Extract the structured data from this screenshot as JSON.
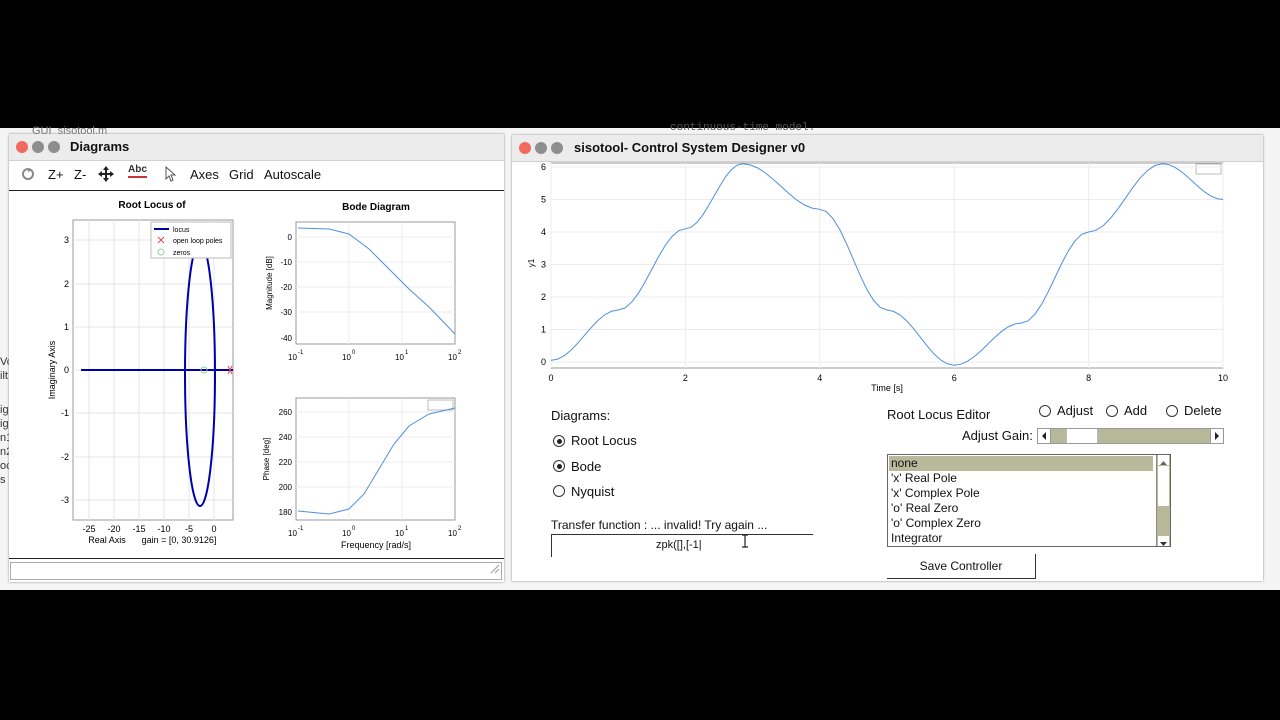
{
  "background_editor": {
    "tab_text": "GUI_sisotool.m",
    "model_text": "continuous-time model.",
    "side_lines": [
      "Vo",
      "ilt",
      "ig",
      "ig",
      "n1",
      "n2",
      "oc",
      "s"
    ]
  },
  "diagrams_window": {
    "title": "Diagrams",
    "toolbar": {
      "zoom_in": "Z+",
      "zoom_out": "Z-",
      "text_tool": "Abc",
      "axes": "Axes",
      "grid": "Grid",
      "autoscale": "Autoscale"
    },
    "root_locus": {
      "title": "Root Locus of",
      "xlabel": "Real Axis",
      "gain_text": "gain = [0, 30.9126]",
      "ylabel": "Imaginary Axis",
      "xticks": [
        "-25",
        "-20",
        "-15",
        "-10",
        "-5",
        "0"
      ],
      "yticks": [
        "3",
        "2",
        "1",
        "0",
        "-1",
        "-2",
        "-3"
      ],
      "legend": [
        "locus",
        "open loop poles",
        "zeros"
      ]
    },
    "bode": {
      "title": "Bode Diagram",
      "mag_ylabel": "Magnitude [dB]",
      "mag_yticks": [
        "0",
        "-10",
        "-20",
        "-30",
        "-40"
      ],
      "phase_ylabel": "Phase [deg]",
      "phase_yticks": [
        "260",
        "240",
        "220",
        "200",
        "180"
      ],
      "xticks": [
        "10",
        "10",
        "10",
        "10"
      ],
      "xtick_exp": [
        "-1",
        "0",
        "1",
        "2"
      ],
      "xlabel": "Frequency [rad/s]"
    }
  },
  "designer_window": {
    "title": "sisotool- Control System Designer v0",
    "step_plot": {
      "xlabel": "Time [s]",
      "ylabel": "y1",
      "xticks": [
        "0",
        "2",
        "4",
        "6",
        "8",
        "10"
      ],
      "yticks": [
        "6",
        "5",
        "4",
        "3",
        "2",
        "1",
        "0"
      ]
    },
    "diagrams_label": "Diagrams:",
    "diagram_options": [
      {
        "label": "Root Locus",
        "selected": true
      },
      {
        "label": "Bode",
        "selected": true
      },
      {
        "label": "Nyquist",
        "selected": false
      }
    ],
    "tf_label": "Transfer function : ... invalid! Try again  ...",
    "tf_value": "zpk([],[-1|",
    "rl_editor": {
      "label": "Root Locus Editor",
      "modes": [
        "Adjust",
        "Add",
        "Delete"
      ],
      "gain_label": "Adjust Gain:",
      "gain_level": 0.12,
      "list": [
        "none",
        "'x' Real Pole",
        "'x' Complex Pole",
        "'o' Real Zero",
        "'o' Complex Zero",
        "Integrator"
      ],
      "selected_index": 0
    },
    "save_button": "Save Controller"
  },
  "chart_data": [
    {
      "type": "line",
      "title": "",
      "xlabel": "Time [s]",
      "ylabel": "y1",
      "xlim": [
        0,
        10
      ],
      "ylim": [
        0,
        6
      ],
      "series": [
        {
          "x": [
            0,
            1,
            2,
            2.85,
            4,
            5,
            6,
            7,
            8,
            9.1,
            10
          ],
          "values": [
            0.05,
            1.6,
            4.1,
            6.1,
            4.7,
            1.6,
            -0.1,
            1.2,
            4.0,
            6.1,
            5.0
          ]
        }
      ]
    }
  ],
  "colors": {
    "locus": "#0000aa",
    "line": "#4f8fdf",
    "listsel": "#b8b89a",
    "slider": "#b8b89a"
  }
}
